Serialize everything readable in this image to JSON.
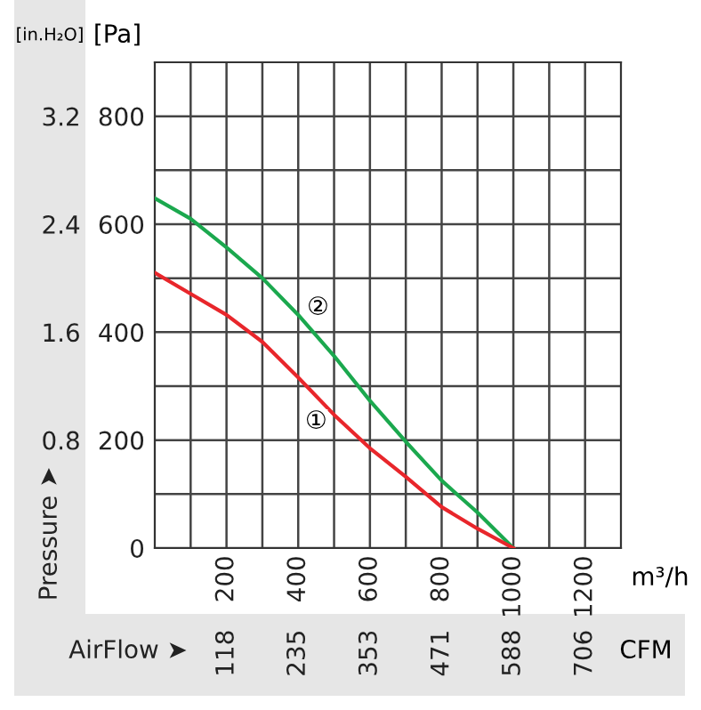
{
  "chart_data": {
    "type": "line",
    "xlabel": "m³/h",
    "ylabel": "[Pa]",
    "y2label": "[in.H₂O]",
    "x2label": "CFM",
    "x": [
      0,
      100,
      200,
      300,
      400,
      500,
      600,
      700,
      800,
      900,
      1000
    ],
    "series": [
      {
        "color": "#1ba84e",
        "values": [
          648,
          610,
          557,
          500,
          432,
          356,
          273,
          197,
          125,
          66,
          0
        ]
      },
      {
        "color": "#e8262b",
        "values": [
          510,
          471,
          432,
          382,
          316,
          247,
          185,
          132,
          76,
          36,
          0
        ]
      }
    ],
    "xlim": [
      0,
      1300
    ],
    "xticks": [
      {
        "value": 100,
        "label": null
      },
      200,
      {
        "value": 300,
        "label": null
      },
      400,
      {
        "value": 500,
        "label": null
      },
      600,
      {
        "value": 700,
        "label": null
      },
      800,
      {
        "value": 900,
        "label": null
      },
      1000,
      {
        "value": 1100,
        "label": null
      },
      1200
    ],
    "ylim": [
      0,
      900
    ],
    "yticks": [
      0,
      {
        "value": 100,
        "label": null
      },
      200,
      {
        "value": 300,
        "label": null
      },
      400,
      {
        "value": 500,
        "label": null
      },
      600,
      {
        "value": 700,
        "label": null
      },
      800
    ],
    "y2lim": [
      0,
      3.6
    ],
    "y2ticks": [
      0.8,
      1.6,
      2.4,
      3.2
    ],
    "x2lim": [
      0,
      765
    ],
    "x2ticks": [
      118,
      235,
      353,
      471,
      588,
      706
    ],
    "grid": true,
    "marker": "none",
    "line_style": "solid",
    "annotations": [
      {
        "text": "①",
        "x": 450,
        "y": 234
      },
      {
        "text": "②",
        "x": 455,
        "y": 445
      },
      "Pressure ➤",
      "AirFlow ➤"
    ]
  }
}
